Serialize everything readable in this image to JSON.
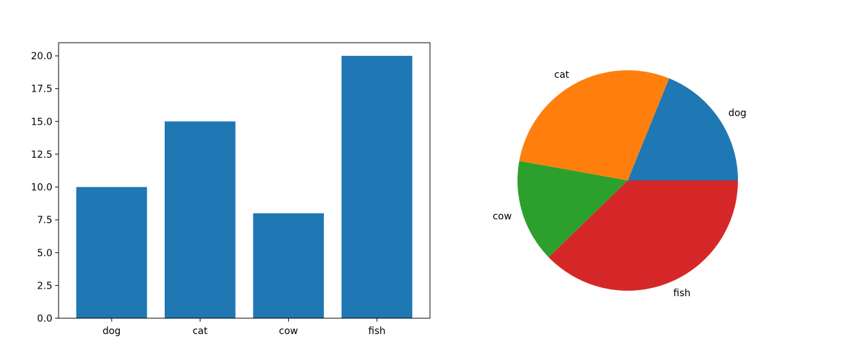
{
  "chart_data": [
    {
      "type": "bar",
      "categories": [
        "dog",
        "cat",
        "cow",
        "fish"
      ],
      "values": [
        10,
        15,
        8,
        20
      ],
      "title": "",
      "xlabel": "",
      "ylabel": "",
      "ylim": [
        0,
        21
      ],
      "yticks": [
        "0.0",
        "2.5",
        "5.0",
        "7.5",
        "10.0",
        "12.5",
        "15.0",
        "17.5",
        "20.0"
      ],
      "color": "#1f77b4",
      "grid": false
    },
    {
      "type": "pie",
      "labels": [
        "dog",
        "cat",
        "cow",
        "fish"
      ],
      "values": [
        10,
        15,
        8,
        20
      ],
      "colors": [
        "#1f77b4",
        "#ff7f0e",
        "#2ca02c",
        "#d62728"
      ],
      "title": ""
    }
  ]
}
